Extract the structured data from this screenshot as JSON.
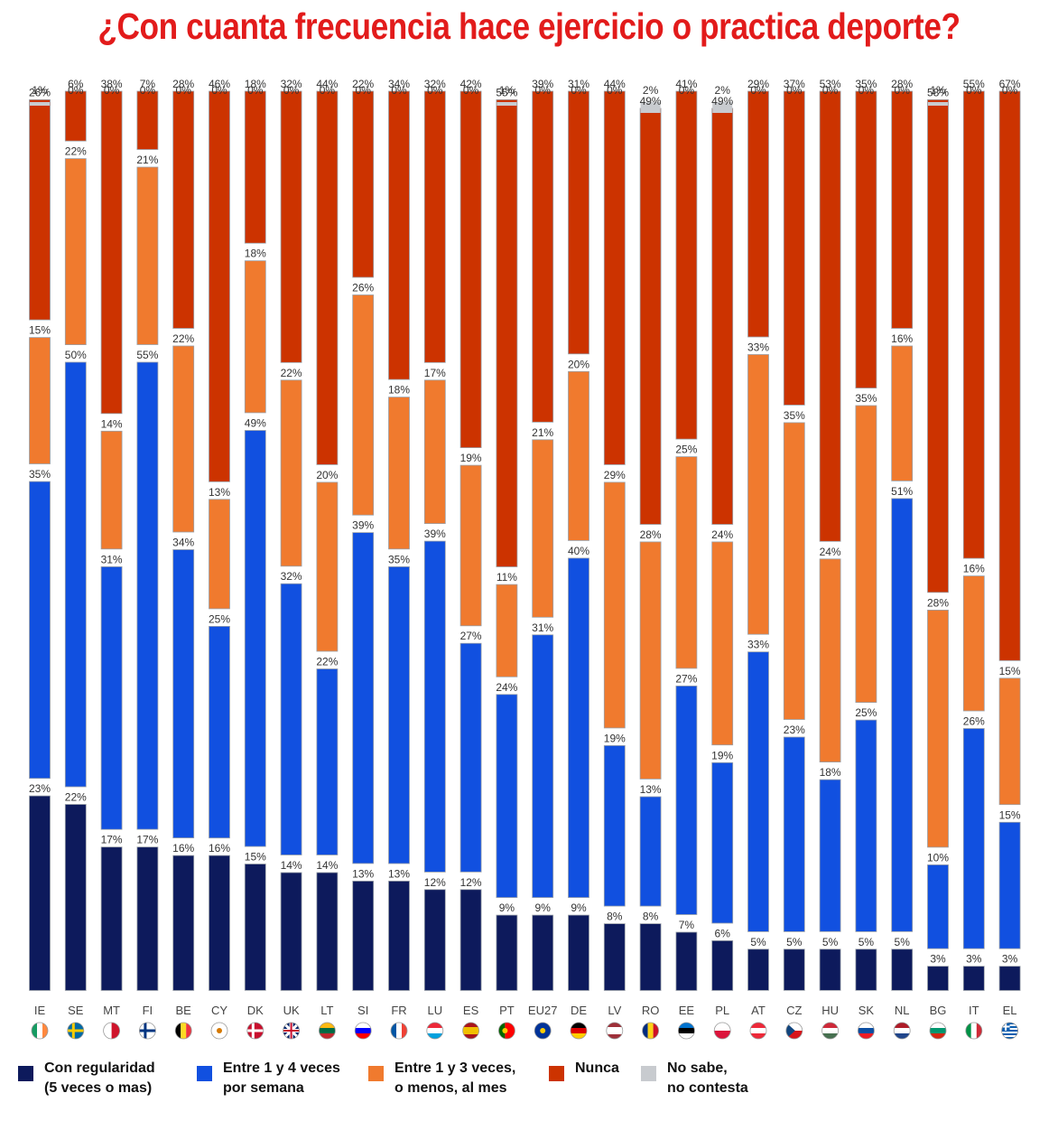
{
  "chart_data": {
    "type": "bar",
    "stacked": true,
    "title": "¿Con cuanta frecuencia hace ejercicio o practica deporte?",
    "categories": [
      "IE",
      "SE",
      "MT",
      "FI",
      "BE",
      "CY",
      "DK",
      "UK",
      "LT",
      "SI",
      "FR",
      "LU",
      "ES",
      "PT",
      "EU27",
      "DE",
      "LV",
      "RO",
      "EE",
      "PL",
      "AT",
      "CZ",
      "HU",
      "SK",
      "NL",
      "BG",
      "IT",
      "EL"
    ],
    "series": [
      {
        "name": "Con regularidad\n(5 veces o mas)",
        "color": "#0d1a5c",
        "values": [
          23,
          22,
          17,
          17,
          16,
          16,
          15,
          14,
          14,
          13,
          13,
          12,
          12,
          9,
          9,
          9,
          8,
          8,
          7,
          6,
          5,
          5,
          5,
          5,
          5,
          3,
          3,
          3
        ]
      },
      {
        "name": "Entre 1 y 4 veces\npor semana",
        "color": "#1150e0",
        "values": [
          35,
          50,
          31,
          55,
          34,
          25,
          49,
          32,
          22,
          39,
          35,
          39,
          27,
          24,
          31,
          40,
          19,
          13,
          27,
          19,
          33,
          23,
          18,
          25,
          51,
          10,
          26,
          15
        ]
      },
      {
        "name": "Entre 1 y 3 veces,\no menos, al mes",
        "color": "#f07a2e",
        "values": [
          15,
          22,
          14,
          21,
          22,
          13,
          18,
          22,
          20,
          26,
          18,
          17,
          19,
          11,
          21,
          20,
          29,
          28,
          25,
          24,
          33,
          35,
          24,
          35,
          16,
          28,
          16,
          15
        ]
      },
      {
        "name": "Nunca",
        "color": "#cc3300",
        "values": [
          26,
          6,
          38,
          7,
          28,
          46,
          18,
          32,
          44,
          22,
          34,
          32,
          42,
          55,
          39,
          31,
          44,
          49,
          41,
          49,
          29,
          37,
          53,
          35,
          28,
          58,
          55,
          67
        ]
      },
      {
        "name": "No sabe,\nno contesta",
        "color": "#c8cbcf",
        "values": [
          1,
          0,
          0,
          0,
          0,
          0,
          0,
          0,
          0,
          0,
          0,
          0,
          0,
          1,
          0,
          0,
          0,
          2,
          0,
          2,
          0,
          0,
          0,
          0,
          0,
          1,
          0,
          0
        ]
      }
    ],
    "value_suffix": "%",
    "ylim": [
      0,
      100
    ],
    "legend_position": "bottom",
    "grid": false
  },
  "flags": [
    "ie-flag",
    "se-flag",
    "mt-flag",
    "fi-flag",
    "be-flag",
    "cy-flag",
    "dk-flag",
    "uk-flag",
    "lt-flag",
    "si-flag",
    "fr-flag",
    "lu-flag",
    "es-flag",
    "pt-flag",
    "eu-flag",
    "de-flag",
    "lv-flag",
    "ro-flag",
    "ee-flag",
    "pl-flag",
    "at-flag",
    "cz-flag",
    "hu-flag",
    "sk-flag",
    "nl-flag",
    "bg-flag",
    "it-flag",
    "gr-flag"
  ]
}
